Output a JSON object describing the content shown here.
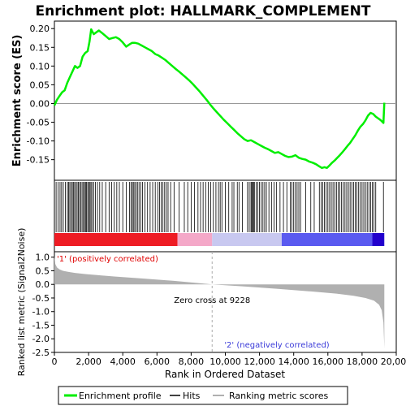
{
  "chart_data": {
    "type": "line",
    "title": "Enrichment plot: HALLMARK_COMPLEMENT",
    "top_panel": {
      "ylabel": "Enrichment score (ES)",
      "xlim": [
        0,
        20000
      ],
      "ylim": [
        -0.205,
        0.22
      ],
      "yticks": [
        0.2,
        0.15,
        0.1,
        0.05,
        0.0,
        -0.05,
        -0.1,
        -0.15
      ],
      "ytick_labels": [
        "0.20",
        "0.15",
        "0.10",
        "0.05",
        "0.00",
        "-0.05",
        "-0.10",
        "-0.15"
      ],
      "baseline": 0.0,
      "series": [
        {
          "name": "Enrichment profile",
          "color": "#00ee00",
          "x": [
            0,
            150,
            300,
            450,
            600,
            750,
            900,
            1050,
            1200,
            1350,
            1500,
            1650,
            1800,
            1950,
            2050,
            2150,
            2300,
            2450,
            2600,
            2800,
            3000,
            3200,
            3400,
            3600,
            3800,
            4000,
            4200,
            4400,
            4550,
            4700,
            4900,
            5100,
            5300,
            5500,
            5700,
            5900,
            6100,
            6300,
            6500,
            6700,
            6900,
            7100,
            7300,
            7500,
            7700,
            7900,
            8100,
            8300,
            8500,
            8700,
            8900,
            9100,
            9300,
            9500,
            9700,
            9900,
            10100,
            10300,
            10500,
            10700,
            10900,
            11100,
            11300,
            11500,
            11700,
            11900,
            12100,
            12300,
            12500,
            12700,
            12900,
            13100,
            13300,
            13500,
            13700,
            13900,
            14100,
            14300,
            14500,
            14700,
            14900,
            15100,
            15300,
            15500,
            15650,
            15800,
            15950,
            16100,
            16250,
            16400,
            16550,
            16700,
            16850,
            17000,
            17150,
            17300,
            17450,
            17600,
            17750,
            17900,
            18050,
            18200,
            18350,
            18500,
            18650,
            18800,
            18950,
            19100,
            19250,
            19300
          ],
          "y": [
            -0.005,
            0.01,
            0.02,
            0.03,
            0.035,
            0.055,
            0.07,
            0.085,
            0.1,
            0.095,
            0.1,
            0.125,
            0.135,
            0.14,
            0.165,
            0.198,
            0.185,
            0.19,
            0.195,
            0.188,
            0.18,
            0.172,
            0.175,
            0.177,
            0.172,
            0.163,
            0.152,
            0.158,
            0.162,
            0.162,
            0.16,
            0.155,
            0.15,
            0.145,
            0.14,
            0.132,
            0.128,
            0.122,
            0.116,
            0.108,
            0.1,
            0.092,
            0.085,
            0.077,
            0.069,
            0.061,
            0.052,
            0.042,
            0.032,
            0.021,
            0.01,
            -0.002,
            -0.013,
            -0.023,
            -0.033,
            -0.043,
            -0.052,
            -0.061,
            -0.07,
            -0.079,
            -0.087,
            -0.095,
            -0.1,
            -0.098,
            -0.103,
            -0.108,
            -0.113,
            -0.118,
            -0.122,
            -0.127,
            -0.132,
            -0.13,
            -0.135,
            -0.14,
            -0.143,
            -0.142,
            -0.138,
            -0.145,
            -0.148,
            -0.15,
            -0.155,
            -0.158,
            -0.162,
            -0.168,
            -0.172,
            -0.17,
            -0.172,
            -0.165,
            -0.158,
            -0.152,
            -0.145,
            -0.138,
            -0.13,
            -0.122,
            -0.113,
            -0.105,
            -0.095,
            -0.085,
            -0.073,
            -0.062,
            -0.055,
            -0.045,
            -0.032,
            -0.025,
            -0.028,
            -0.035,
            -0.04,
            -0.045,
            -0.052,
            0.002
          ]
        }
      ]
    },
    "hits_panel": {
      "label": "Hits",
      "color": "#000000",
      "hit_ranks": [
        100,
        220,
        330,
        420,
        520,
        640,
        760,
        830,
        900,
        980,
        1050,
        1110,
        1180,
        1260,
        1330,
        1400,
        1470,
        1550,
        1620,
        1700,
        1760,
        1820,
        1880,
        1950,
        2010,
        2080,
        2140,
        2200,
        2300,
        2400,
        2520,
        2650,
        2800,
        3000,
        3200,
        3350,
        3500,
        3650,
        3800,
        4000,
        4200,
        4400,
        4480,
        4560,
        4620,
        4700,
        4780,
        4860,
        4950,
        5050,
        5150,
        5300,
        5450,
        5600,
        5750,
        5900,
        6050,
        6150,
        6250,
        6350,
        6450,
        6550,
        6650,
        6800,
        7000,
        7300,
        7600,
        7800,
        8000,
        8200,
        8400,
        8550,
        8700,
        8850,
        9000,
        9150,
        9300,
        9450,
        9600,
        9700,
        9800,
        10000,
        10200,
        10400,
        10500,
        10700,
        10800,
        11000,
        11300,
        11400,
        11500,
        11550,
        11600,
        11650,
        11700,
        11800,
        11900,
        12000,
        12100,
        12200,
        12300,
        12400,
        12550,
        12700,
        12850,
        13000,
        13200,
        13400,
        13600,
        13800,
        13900,
        14000,
        14100,
        14200,
        14300,
        14400,
        14700,
        15000,
        15200,
        15500,
        15600,
        15700,
        15800,
        15900,
        16000,
        16100,
        16200,
        16300,
        16400,
        16500,
        16600,
        16700,
        16800,
        16900,
        17000,
        17100,
        17200,
        17300,
        17400,
        17500,
        17600,
        17700,
        17800,
        17900,
        18000,
        18100,
        18200,
        18300,
        18400,
        18500,
        18600,
        18700,
        18800,
        19250
      ]
    },
    "ranking_bar": {
      "segments": [
        {
          "from": 0,
          "to": 7200,
          "color": "#ee1c24"
        },
        {
          "from": 7200,
          "to": 9228,
          "color": "#f4a8c8"
        },
        {
          "from": 9228,
          "to": 13300,
          "color": "#c8c8f0"
        },
        {
          "from": 13300,
          "to": 18600,
          "color": "#5a5af0"
        },
        {
          "from": 18600,
          "to": 19300,
          "color": "#2200cc"
        }
      ]
    },
    "bottom_panel": {
      "ylabel": "Ranked list metric (Signal2Noise)",
      "xlabel": "Rank in Ordered Dataset",
      "xlim": [
        0,
        20000
      ],
      "xticks": [
        0,
        2000,
        4000,
        6000,
        8000,
        10000,
        12000,
        14000,
        16000,
        18000,
        20000
      ],
      "xtick_labels": [
        "0",
        "2,000",
        "4,000",
        "6,000",
        "8,000",
        "10,000",
        "12,000",
        "14,000",
        "16,000",
        "18,000",
        "20,000"
      ],
      "ylim": [
        -2.5,
        1.2
      ],
      "yticks": [
        1.0,
        0.5,
        0.0,
        -0.5,
        -1.0,
        -1.5,
        -2.0,
        -2.5
      ],
      "ytick_labels": [
        "1.0",
        "0.5",
        "0.0",
        "-0.5",
        "-1.0",
        "-1.5",
        "-2.0",
        "-2.5"
      ],
      "metric_color": "#b0b0b0",
      "metric_x": [
        0,
        50,
        150,
        300,
        500,
        800,
        1200,
        1800,
        2500,
        3500,
        5000,
        7000,
        9228,
        11000,
        13000,
        15000,
        16500,
        17500,
        18200,
        18700,
        19000,
        19150,
        19250,
        19300
      ],
      "metric_y": [
        1.05,
        0.75,
        0.62,
        0.55,
        0.5,
        0.46,
        0.42,
        0.38,
        0.34,
        0.29,
        0.22,
        0.13,
        0.0,
        -0.07,
        -0.16,
        -0.26,
        -0.34,
        -0.42,
        -0.5,
        -0.6,
        -0.75,
        -0.95,
        -1.4,
        -2.35
      ],
      "zero_cross_rank": 9228,
      "annotations": {
        "positive": "'1' (positively correlated)",
        "negative": "'2' (negatively correlated)",
        "zero_cross": "Zero cross at 9228"
      }
    },
    "legend": {
      "placement": "bottom",
      "entries": [
        {
          "label": "Enrichment profile",
          "color": "#00ee00"
        },
        {
          "label": "Hits",
          "color": "#000000"
        },
        {
          "label": "Ranking metric scores",
          "color": "#b0b0b0"
        }
      ]
    }
  }
}
